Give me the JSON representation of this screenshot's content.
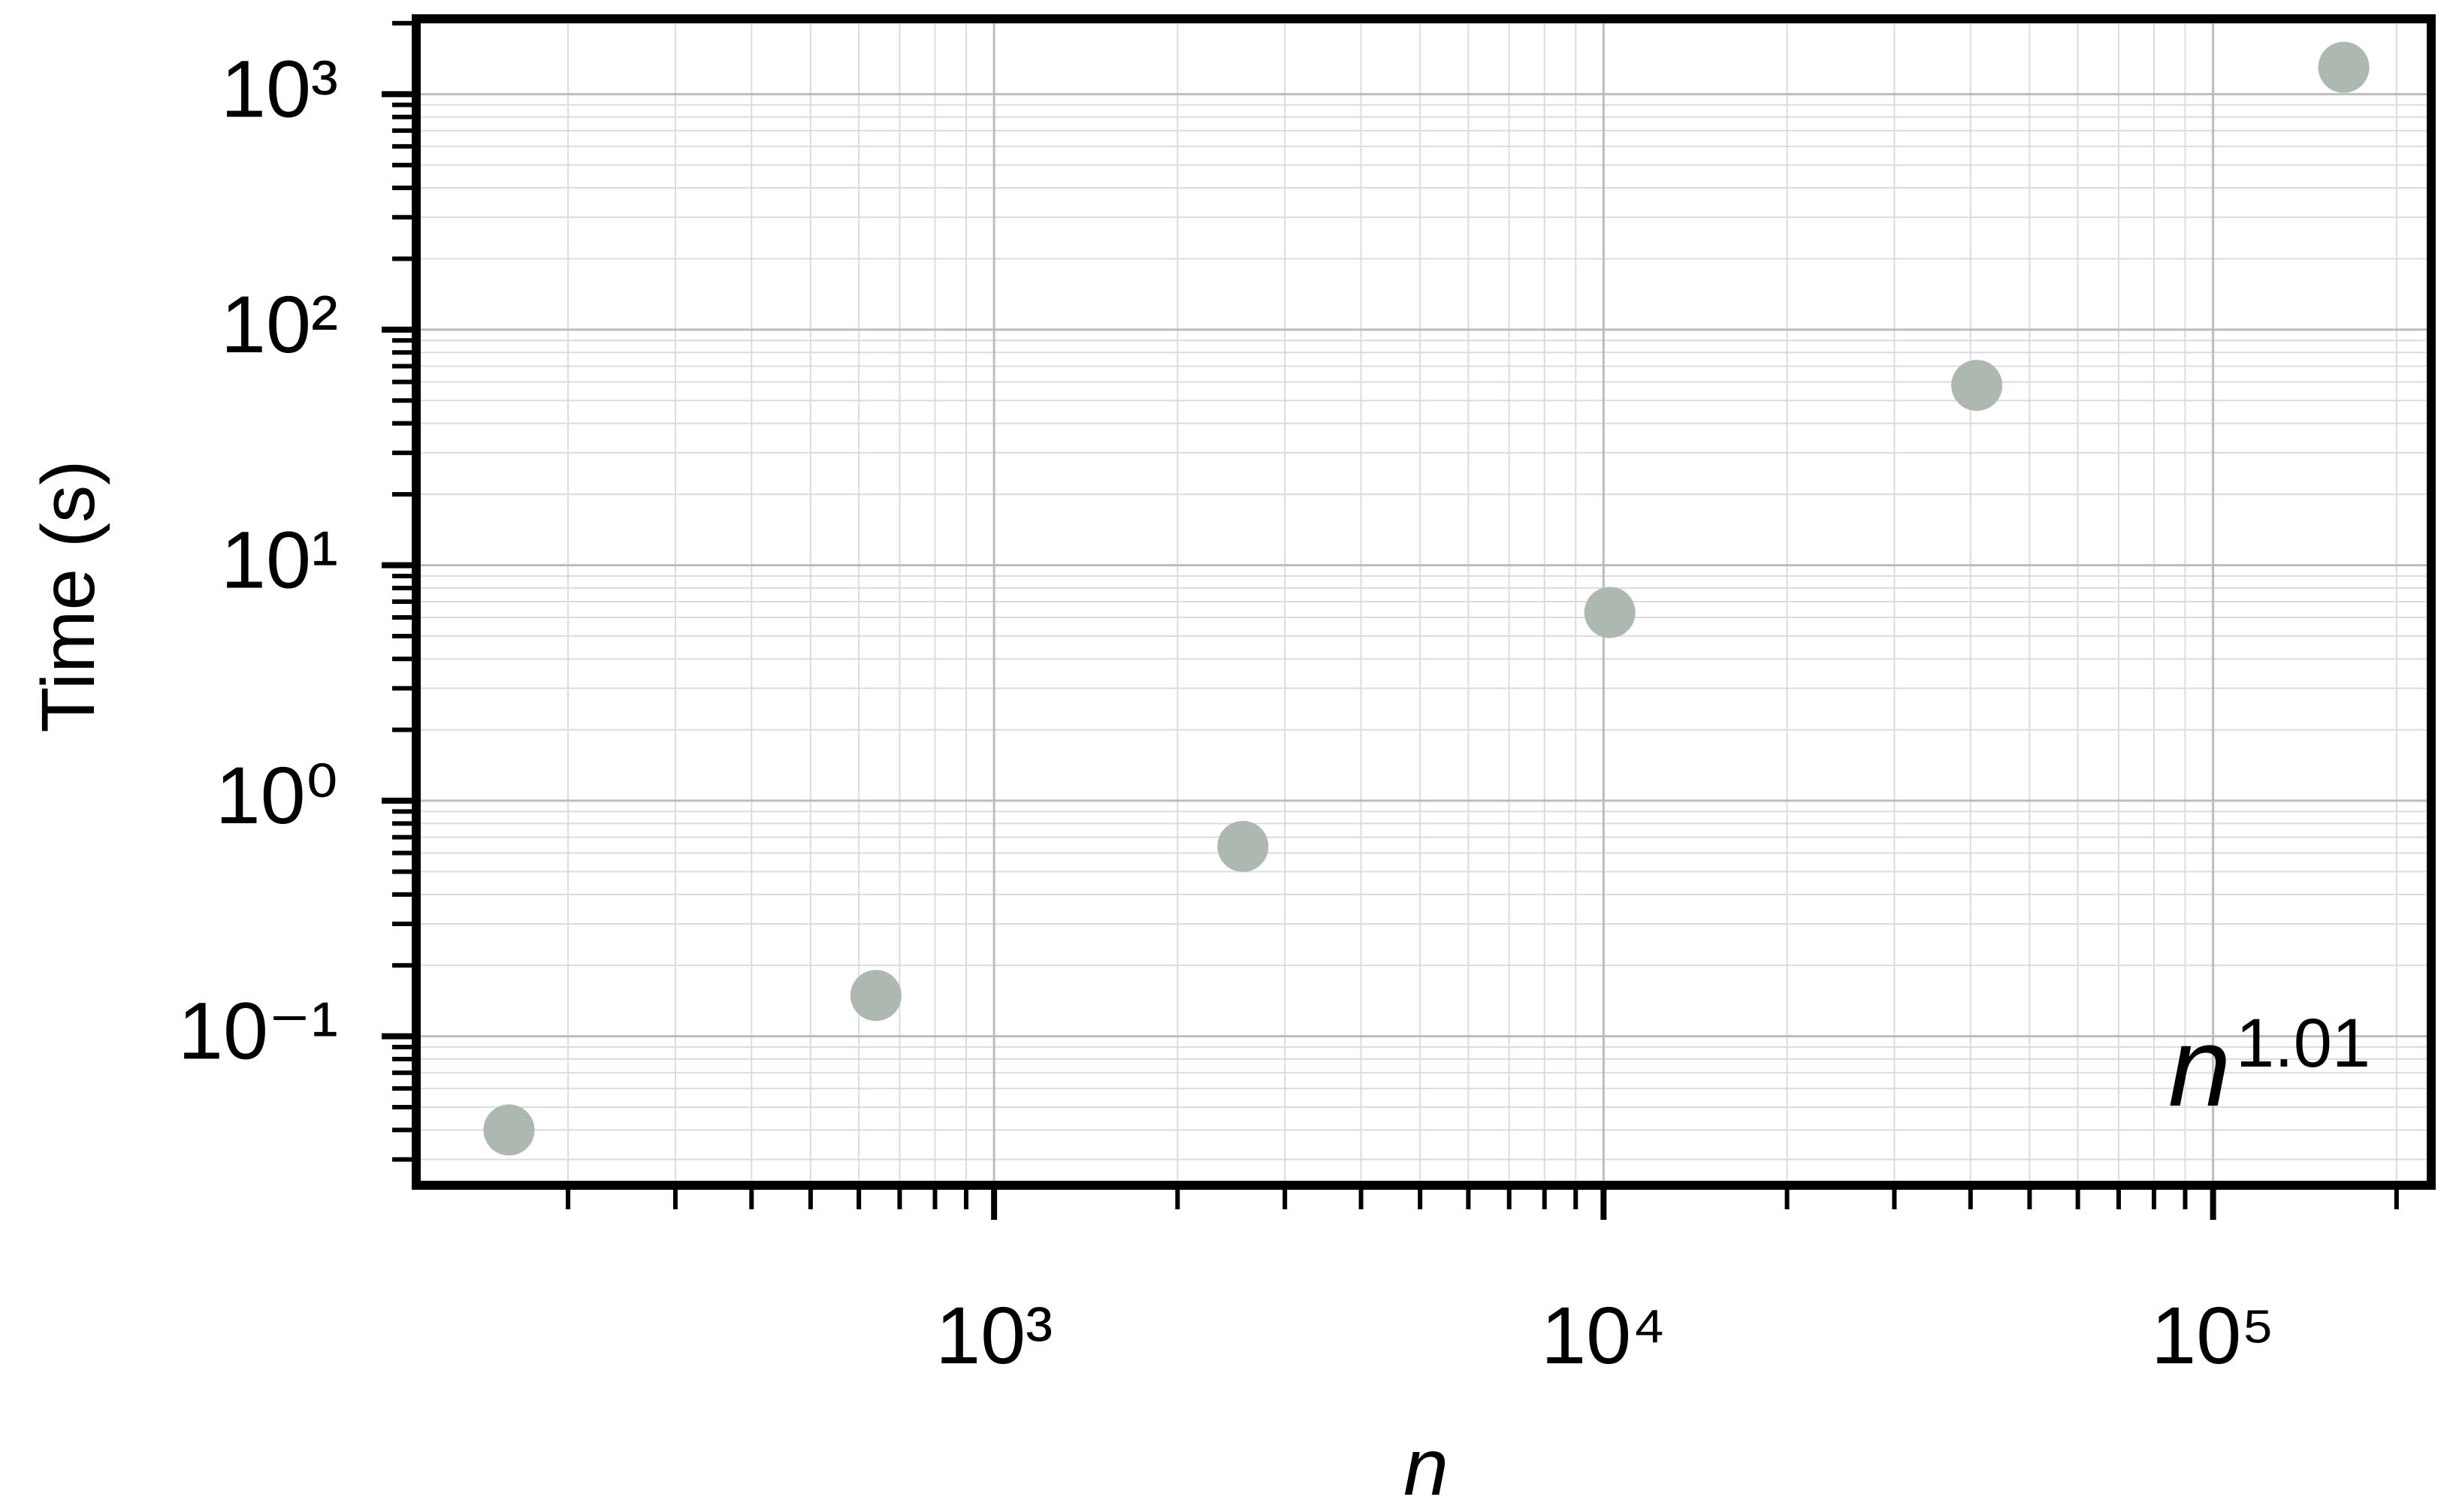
{
  "chart_data": {
    "type": "scatter",
    "xlabel": "n",
    "ylabel": "Time (s)",
    "annotation": {
      "text": "n",
      "superscript": "1.01"
    },
    "x": [
      160,
      640,
      2560,
      10240,
      40960,
      163840
    ],
    "series": [
      {
        "color": "#adb8b0",
        "values": [
          0.04,
          0.149,
          0.64,
          6.3,
          58,
          1300
        ]
      }
    ],
    "xscale": "log",
    "yscale": "log",
    "xlim": [
      112.7,
      228000
    ],
    "ylim": [
      0.0233,
      2089
    ],
    "xticks": [
      {
        "value": 1000,
        "label": "10³"
      },
      {
        "value": 10000,
        "label": "10⁴"
      },
      {
        "value": 100000,
        "label": "10⁵"
      }
    ],
    "yticks": [
      {
        "value": 0.1,
        "label": "10⁻¹"
      },
      {
        "value": 1,
        "label": "10⁰"
      },
      {
        "value": 10,
        "label": "10¹"
      },
      {
        "value": 100,
        "label": "10²"
      },
      {
        "value": 1000,
        "label": "10³"
      }
    ],
    "xminorticks": [
      200,
      300,
      400,
      500,
      600,
      700,
      800,
      900,
      2000,
      3000,
      4000,
      5000,
      6000,
      7000,
      8000,
      9000,
      20000,
      30000,
      40000,
      50000,
      60000,
      70000,
      80000,
      90000,
      200000
    ],
    "yminorticks": [
      0.03,
      0.04,
      0.05,
      0.06,
      0.07,
      0.08,
      0.09,
      0.2,
      0.3,
      0.4,
      0.5,
      0.6,
      0.7,
      0.8,
      0.9,
      2,
      3,
      4,
      5,
      6,
      7,
      8,
      9,
      20,
      30,
      40,
      50,
      60,
      70,
      80,
      90,
      200,
      300,
      400,
      500,
      600,
      700,
      800,
      900,
      2000
    ],
    "grid": true
  }
}
